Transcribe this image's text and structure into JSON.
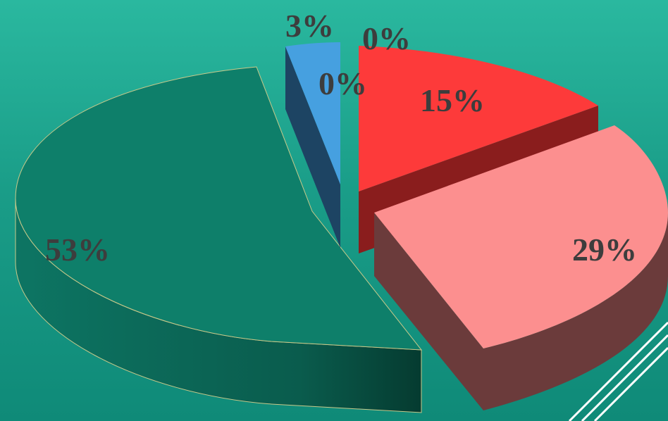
{
  "chart_data": {
    "type": "pie",
    "style": "3d-exploded",
    "slices": [
      {
        "label": "15%",
        "value": 15,
        "color": "#fd3a3a",
        "side_color": "#8a1d1d"
      },
      {
        "label": "29%",
        "value": 29,
        "color": "#fc8f8f",
        "side_color": "#6b3b3b"
      },
      {
        "label": "53%",
        "value": 53,
        "color": "#0e7f6a",
        "side_color": "#0a5a4b"
      },
      {
        "label": "3%",
        "value": 3,
        "color": "#46a0e0",
        "side_color": "#1d4463"
      },
      {
        "label": "0%",
        "value": 0,
        "color": "#46a0e0"
      },
      {
        "label": "0%",
        "value": 0,
        "color": "#fd3a3a"
      }
    ]
  },
  "colors": {
    "background_top": "#2ab89f",
    "background_bottom": "#0f8a78",
    "label": "#3d3d3d",
    "decor_lines": "#ffffff"
  }
}
